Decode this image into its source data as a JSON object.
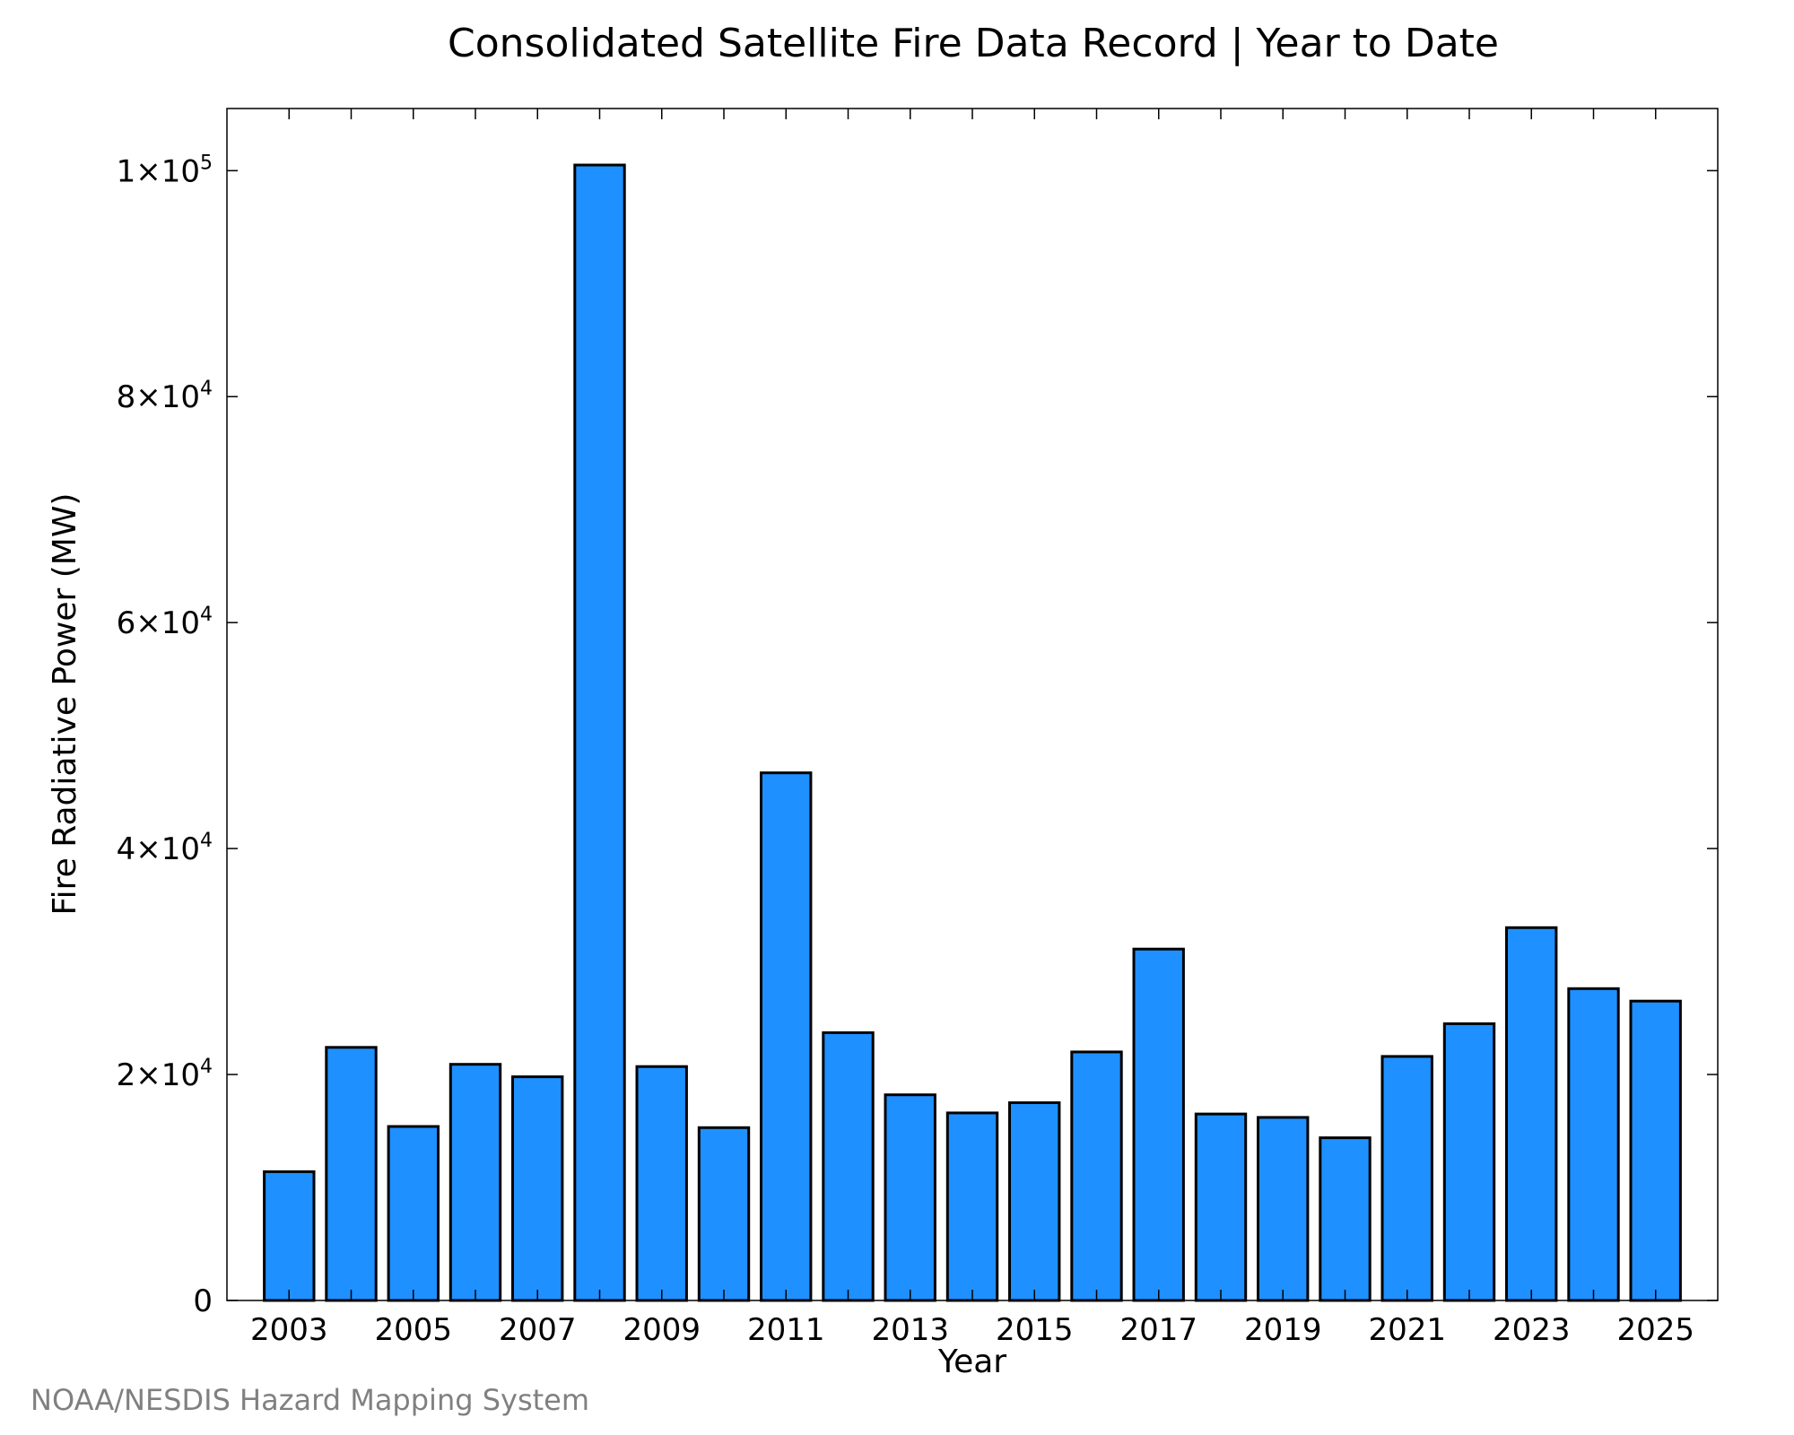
{
  "chart_data": {
    "type": "bar",
    "title": "Consolidated Satellite Fire Data Record | Year to Date",
    "xlabel": "Year",
    "ylabel": "Fire Radiative Power (MW)",
    "categories": [
      "2003",
      "2004",
      "2005",
      "2006",
      "2007",
      "2008",
      "2009",
      "2010",
      "2011",
      "2012",
      "2013",
      "2014",
      "2015",
      "2016",
      "2017",
      "2018",
      "2019",
      "2020",
      "2021",
      "2022",
      "2023",
      "2024",
      "2025"
    ],
    "values": [
      11400,
      22400,
      15400,
      20900,
      19800,
      100500,
      20700,
      15300,
      46700,
      23700,
      18200,
      16600,
      17500,
      22000,
      31100,
      16500,
      16200,
      14400,
      21600,
      24500,
      33000,
      27600,
      26500
    ],
    "x_tick_labels": [
      "2003",
      "2005",
      "2007",
      "2009",
      "2011",
      "2013",
      "2015",
      "2017",
      "2019",
      "2021",
      "2023",
      "2025"
    ],
    "y_tick_values": [
      0,
      20000,
      40000,
      60000,
      80000,
      100000
    ],
    "y_tick_labels": [
      {
        "mantissa": "0",
        "exponent": ""
      },
      {
        "mantissa": "2×10",
        "exponent": "4"
      },
      {
        "mantissa": "4×10",
        "exponent": "4"
      },
      {
        "mantissa": "6×10",
        "exponent": "4"
      },
      {
        "mantissa": "8×10",
        "exponent": "4"
      },
      {
        "mantissa": "1×10",
        "exponent": "5"
      }
    ],
    "ylim": [
      0,
      105500
    ],
    "xlim": [
      2002,
      2026
    ],
    "grid": false,
    "bar_color": "#1e90ff",
    "bar_edge_color": "#000000"
  },
  "credit": "NOAA/NESDIS Hazard Mapping System"
}
